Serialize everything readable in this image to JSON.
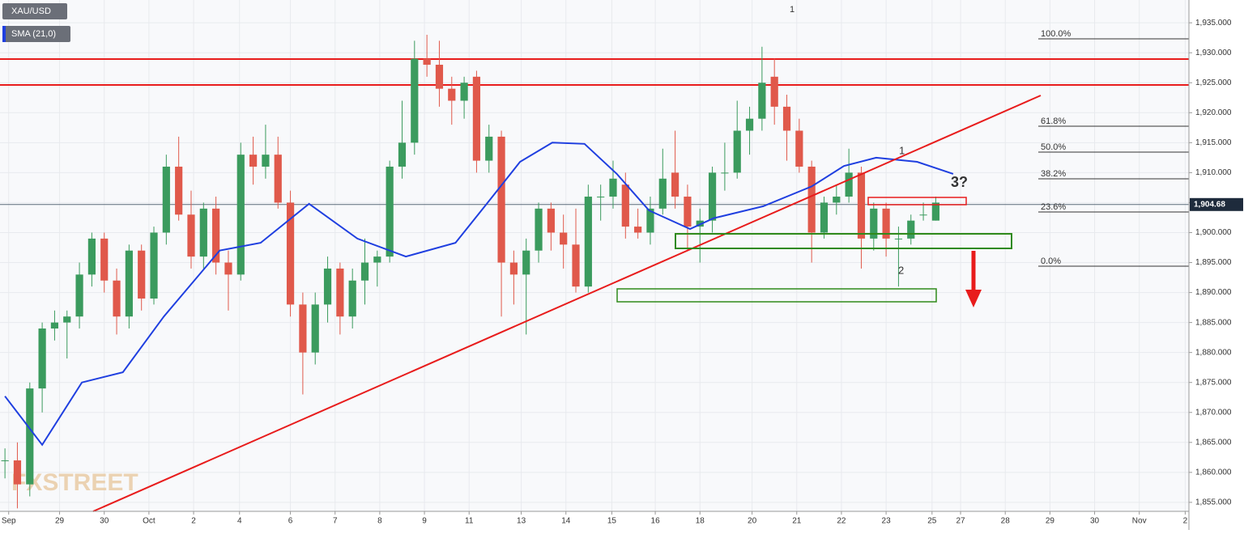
{
  "chart_data": {
    "type": "candlestick",
    "symbol": "XAU/USD",
    "up_color": "#3b9b5e",
    "down_color": "#e0594b",
    "open": [
      1862,
      1862,
      1858,
      1874,
      1884,
      1885,
      1886,
      1893,
      1899,
      1892,
      1886,
      1897,
      1889,
      1900,
      1911,
      1903,
      1896,
      1904,
      1895,
      1893,
      1913,
      1911,
      1913,
      1905,
      1888,
      1880,
      1888,
      1894,
      1886,
      1892,
      1895,
      1896,
      1911,
      1915,
      1929,
      1928,
      1924,
      1922,
      1926,
      1912,
      1916,
      1895,
      1893,
      1897,
      1904,
      1900,
      1898,
      1891,
      1906,
      1906,
      1908,
      1901,
      1900,
      1904,
      1910,
      1906,
      1901,
      1902,
      1910,
      1910,
      1917,
      1919,
      1926,
      1921,
      1917,
      1911,
      1900,
      1905,
      1906,
      1910,
      1899,
      1904,
      1899,
      1899,
      1903,
      1902
    ],
    "high": [
      1864,
      1865,
      1875,
      1885,
      1887,
      1887,
      1895,
      1900,
      1900,
      1894,
      1898,
      1898,
      1901,
      1913,
      1916,
      1907,
      1905,
      1906,
      1897,
      1915,
      1916,
      1918,
      1916,
      1907,
      1890,
      1890,
      1896,
      1895,
      1894,
      1899,
      1897,
      1912,
      1922,
      1932,
      1933,
      1932,
      1926,
      1926,
      1927,
      1918,
      1917,
      1897,
      1899,
      1905,
      1905,
      1903,
      1904,
      1908,
      1908,
      1912,
      1910,
      1904,
      1906,
      1914,
      1917,
      1908,
      1904,
      1911,
      1915,
      1922,
      1921,
      1931,
      1929,
      1923,
      1919,
      1912,
      1906,
      1908,
      1914,
      1911,
      1905,
      1905,
      1901,
      1903,
      1905,
      1906
    ],
    "low": [
      1859,
      1854,
      1856,
      1870,
      1882,
      1879,
      1884,
      1891,
      1890,
      1883,
      1884,
      1887,
      1888,
      1898,
      1902,
      1894,
      1894,
      1893,
      1887,
      1892,
      1908,
      1909,
      1904,
      1886,
      1873,
      1878,
      1885,
      1883,
      1884,
      1888,
      1891,
      1895,
      1909,
      1913,
      1926,
      1921,
      1918,
      1919,
      1910,
      1910,
      1886,
      1888,
      1883,
      1895,
      1897,
      1894,
      1890,
      1890,
      1902,
      1904,
      1899,
      1899,
      1898,
      1903,
      1904,
      1897,
      1895,
      1900,
      1907,
      1909,
      1913,
      1917,
      1918,
      1912,
      1910,
      1895,
      1899,
      1903,
      1905,
      1894,
      1897,
      1896,
      1891,
      1898,
      1902,
      1902
    ],
    "close": [
      1862,
      1858,
      1874,
      1884,
      1885,
      1886,
      1893,
      1899,
      1892,
      1886,
      1897,
      1889,
      1900,
      1911,
      1903,
      1896,
      1904,
      1895,
      1893,
      1913,
      1911,
      1913,
      1905,
      1888,
      1880,
      1888,
      1894,
      1886,
      1892,
      1895,
      1896,
      1911,
      1915,
      1929,
      1928,
      1924,
      1922,
      1925,
      1912,
      1916,
      1895,
      1893,
      1897,
      1904,
      1900,
      1898,
      1891,
      1906,
      1906,
      1909,
      1901,
      1900,
      1904,
      1909,
      1906,
      1901,
      1902,
      1910,
      1910,
      1917,
      1919,
      1925,
      1921,
      1917,
      1911,
      1900,
      1905,
      1906,
      1910,
      1899,
      1904,
      1899,
      1899,
      1902,
      1903,
      1905
    ],
    "sma": {
      "name": "SMA (21,0)",
      "color": "#1f3fe0",
      "x": [
        0,
        3,
        6.2,
        9.5,
        12.8,
        17.3,
        20.6,
        24.5,
        28.4,
        32.3,
        36.3,
        38.9,
        41.5,
        44.1,
        46.7,
        49.3,
        51.9,
        55.2,
        57.1,
        61.1,
        65,
        67.6,
        70.2,
        73.5,
        76.4
      ],
      "values": [
        1872.7,
        1864.6,
        1875,
        1876.7,
        1886,
        1897,
        1898.3,
        1904.8,
        1899,
        1896,
        1898.3,
        1905,
        1911.8,
        1915,
        1914.8,
        1909.8,
        1903.7,
        1900.6,
        1902.4,
        1904.4,
        1907.7,
        1911.1,
        1912.5,
        1911.8,
        1909.8
      ]
    },
    "last_price": {
      "value": 1904.68,
      "label": "1,904.68"
    },
    "xlim": [
      -0.4,
      95.4
    ],
    "ylim": [
      1853.5,
      1938.8
    ],
    "grid": true,
    "xticks": [
      {
        "value": 0.3,
        "label": "Sep"
      },
      {
        "value": 4.4,
        "label": "29"
      },
      {
        "value": 8,
        "label": "30"
      },
      {
        "value": 11.6,
        "label": "Oct"
      },
      {
        "value": 15.2,
        "label": "2"
      },
      {
        "value": 18.9,
        "label": "4"
      },
      {
        "value": 23,
        "label": "6"
      },
      {
        "value": 26.6,
        "label": "7"
      },
      {
        "value": 30.2,
        "label": "8"
      },
      {
        "value": 33.8,
        "label": "9"
      },
      {
        "value": 37.4,
        "label": "11"
      },
      {
        "value": 41.6,
        "label": "13"
      },
      {
        "value": 45.2,
        "label": "14"
      },
      {
        "value": 48.9,
        "label": "15"
      },
      {
        "value": 52.4,
        "label": "16"
      },
      {
        "value": 56,
        "label": "18"
      },
      {
        "value": 60.2,
        "label": "20"
      },
      {
        "value": 63.8,
        "label": "21"
      },
      {
        "value": 67.4,
        "label": "22"
      },
      {
        "value": 71,
        "label": "23"
      },
      {
        "value": 74.7,
        "label": "25"
      },
      {
        "value": 77,
        "label": "27"
      },
      {
        "value": 80.6,
        "label": "28"
      },
      {
        "value": 84.2,
        "label": "29"
      },
      {
        "value": 87.8,
        "label": "30"
      },
      {
        "value": 91.4,
        "label": "Nov"
      },
      {
        "value": 95.1,
        "label": "2"
      }
    ],
    "yticks": [
      {
        "value": 1855,
        "label": "1,855.000"
      },
      {
        "value": 1860,
        "label": "1,860.000"
      },
      {
        "value": 1865,
        "label": "1,865.000"
      },
      {
        "value": 1870,
        "label": "1,870.000"
      },
      {
        "value": 1875,
        "label": "1,875.000"
      },
      {
        "value": 1880,
        "label": "1,880.000"
      },
      {
        "value": 1885,
        "label": "1,885.000"
      },
      {
        "value": 1890,
        "label": "1,890.000"
      },
      {
        "value": 1895,
        "label": "1,895.000"
      },
      {
        "value": 1900,
        "label": "1,900.000"
      },
      {
        "value": 1905,
        "label": "1,905.000"
      },
      {
        "value": 1910,
        "label": "1,910.000"
      },
      {
        "value": 1915,
        "label": "1,915.000"
      },
      {
        "value": 1920,
        "label": "1,920.000"
      },
      {
        "value": 1925,
        "label": "1,925.000"
      },
      {
        "value": 1930,
        "label": "1,930.000"
      },
      {
        "value": 1935,
        "label": "1,935.000"
      }
    ],
    "fib_labels": [
      "100.0%",
      "61.8%",
      "50.0%",
      "38.2%",
      "23.6%",
      "0.0%"
    ],
    "annotations": [
      "1",
      "1",
      "2",
      "3?"
    ],
    "watermark": "FXSTREET"
  }
}
